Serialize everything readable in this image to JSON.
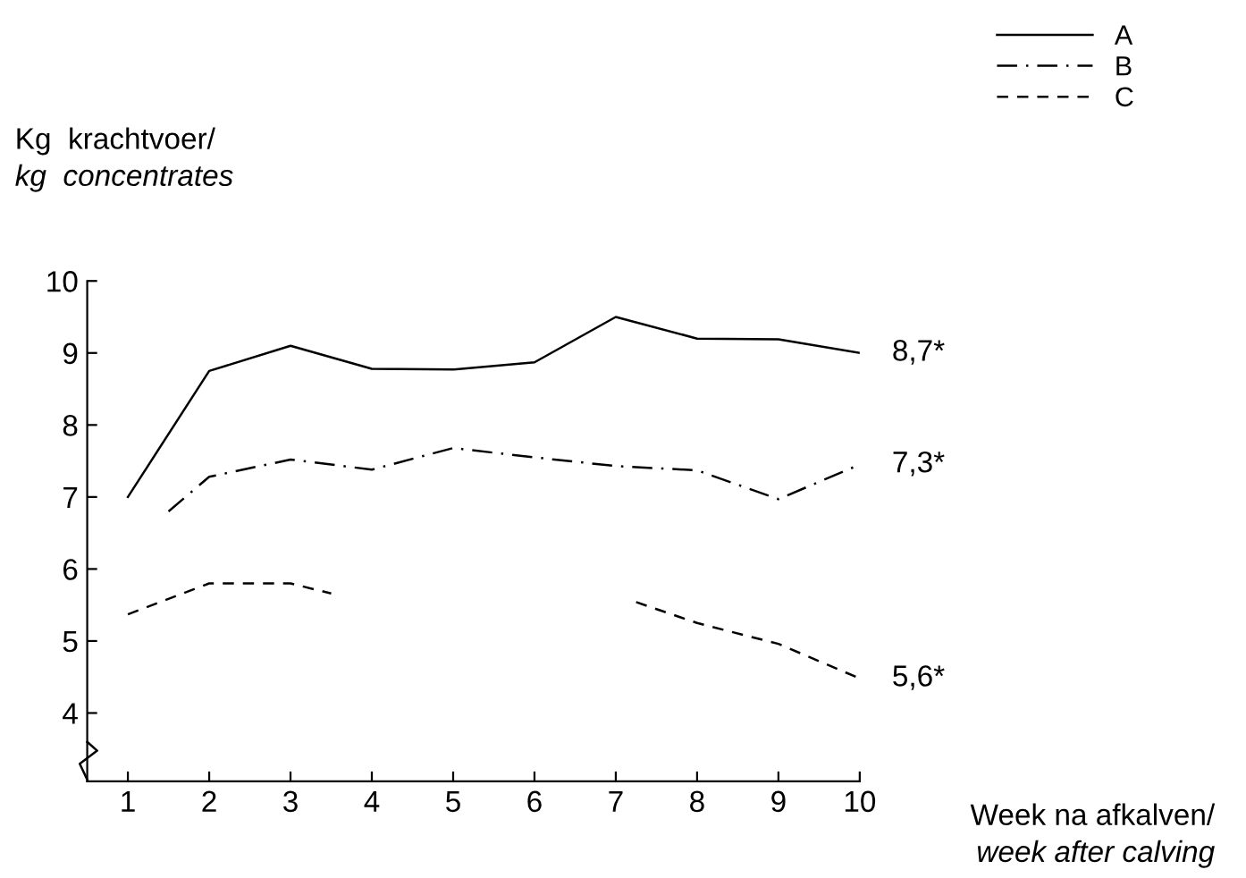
{
  "chart_data": {
    "type": "line",
    "xlabel": "Week na afkalven/\nweek after calving",
    "ylabel": "Kg  krachtvoer/\nkg  concentrates",
    "series": [
      {
        "name": "A",
        "color": "#000000",
        "line_style": "solid",
        "x": [
          1,
          2,
          3,
          4,
          5,
          6,
          7,
          8,
          9,
          10
        ],
        "values": [
          7.0,
          8.75,
          9.1,
          8.78,
          8.77,
          8.87,
          9.5,
          9.2,
          9.19,
          9.0
        ]
      },
      {
        "name": "B",
        "color": "#000000",
        "line_style": "dashdot",
        "x": [
          1.5,
          2,
          3,
          4,
          5,
          6,
          7,
          8,
          9,
          10
        ],
        "values": [
          6.8,
          7.28,
          7.52,
          7.38,
          7.68,
          7.55,
          7.43,
          7.37,
          6.97,
          7.45
        ]
      },
      {
        "name": "C",
        "color": "#000000",
        "line_style": "dashed",
        "x": [
          1,
          2,
          3,
          3.5,
          5,
          7.25,
          8,
          9,
          10
        ],
        "values": [
          5.37,
          5.8,
          5.8,
          5.66,
          null,
          5.54,
          5.25,
          4.96,
          4.48
        ]
      }
    ],
    "annotations": [
      "8,7*",
      "7,3*",
      "5,6*"
    ],
    "xlim": [
      0.5,
      10
    ],
    "xticks": [
      1,
      2,
      3,
      4,
      5,
      6,
      7,
      8,
      9,
      10
    ],
    "ylim": [
      3.05,
      10
    ],
    "yticks": [
      4,
      5,
      6,
      7,
      8,
      9,
      10
    ],
    "grid": false,
    "legend": "top right",
    "marker": "none"
  }
}
